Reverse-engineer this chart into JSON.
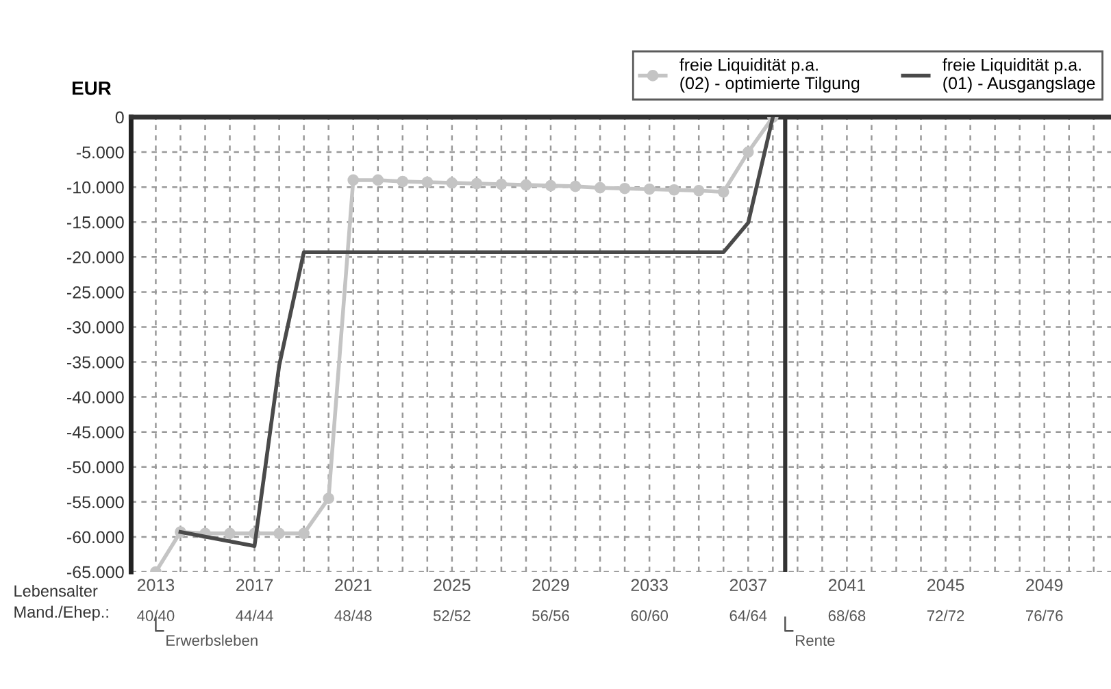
{
  "chart_data": {
    "type": "line",
    "ylabel": "EUR",
    "series": [
      {
        "name": "freie Liquidität p.a.\n(02) - optimierte Tilgung",
        "color": "#c4c4c4",
        "marker": "circle",
        "x": [
          2013,
          2014,
          2015,
          2016,
          2017,
          2018,
          2019,
          2020,
          2021,
          2022,
          2023,
          2024,
          2025,
          2026,
          2027,
          2028,
          2029,
          2030,
          2031,
          2032,
          2033,
          2034,
          2035,
          2036,
          2037,
          2038
        ],
        "values": [
          -65000,
          -59300,
          -59500,
          -59500,
          -59500,
          -59500,
          -59500,
          -54500,
          -9000,
          -9000,
          -9200,
          -9300,
          -9400,
          -9500,
          -9600,
          -9700,
          -9800,
          -9900,
          -10100,
          -10200,
          -10300,
          -10400,
          -10500,
          -10700,
          -5000,
          0
        ]
      },
      {
        "name": "freie Liquidität p.a.\n(01) - Ausgangslage",
        "color": "#4a4a4a",
        "marker": "none",
        "x": [
          2014,
          2017,
          2018,
          2019,
          2036,
          2037,
          2038
        ],
        "values": [
          -59300,
          -61300,
          -35500,
          -19300,
          -19300,
          -15100,
          0
        ]
      }
    ],
    "xlim": [
      2012,
      2051.7
    ],
    "xticks": [
      2013,
      {
        "value": 2014,
        "label": null
      },
      {
        "value": 2015,
        "label": null
      },
      {
        "value": 2016,
        "label": null
      },
      2017,
      {
        "value": 2018,
        "label": null
      },
      {
        "value": 2019,
        "label": null
      },
      {
        "value": 2020,
        "label": null
      },
      2021,
      {
        "value": 2022,
        "label": null
      },
      {
        "value": 2023,
        "label": null
      },
      {
        "value": 2024,
        "label": null
      },
      2025,
      {
        "value": 2026,
        "label": null
      },
      {
        "value": 2027,
        "label": null
      },
      {
        "value": 2028,
        "label": null
      },
      2029,
      {
        "value": 2030,
        "label": null
      },
      {
        "value": 2031,
        "label": null
      },
      {
        "value": 2032,
        "label": null
      },
      2033,
      {
        "value": 2034,
        "label": null
      },
      {
        "value": 2035,
        "label": null
      },
      {
        "value": 2036,
        "label": null
      },
      2037,
      {
        "value": 2038,
        "label": null
      },
      {
        "value": 2039,
        "label": null
      },
      {
        "value": 2040,
        "label": null
      },
      2041,
      {
        "value": 2042,
        "label": null
      },
      {
        "value": 2043,
        "label": null
      },
      {
        "value": 2044,
        "label": null
      },
      2045,
      {
        "value": 2046,
        "label": null
      },
      {
        "value": 2047,
        "label": null
      },
      {
        "value": 2048,
        "label": null
      },
      2049,
      {
        "value": 2050,
        "label": null
      },
      {
        "value": 2051,
        "label": null
      }
    ],
    "ylim": [
      -65000,
      0
    ],
    "yticks": [
      {
        "value": 0,
        "label": "0"
      },
      {
        "value": -5000,
        "label": "-5.000"
      },
      {
        "value": -10000,
        "label": "-10.000"
      },
      {
        "value": -15000,
        "label": "-15.000"
      },
      {
        "value": -20000,
        "label": "-20.000"
      },
      {
        "value": -25000,
        "label": "-25.000"
      },
      {
        "value": -30000,
        "label": "-30.000"
      },
      {
        "value": -35000,
        "label": "-35.000"
      },
      {
        "value": -40000,
        "label": "-40.000"
      },
      {
        "value": -45000,
        "label": "-45.000"
      },
      {
        "value": -50000,
        "label": "-50.000"
      },
      {
        "value": -55000,
        "label": "-55.000"
      },
      {
        "value": -60000,
        "label": "-60.000"
      },
      {
        "value": -65000,
        "label": "-65.000"
      }
    ],
    "ref_lines": [
      {
        "axis": "x",
        "value": 2038.5,
        "color": "#333333"
      }
    ],
    "annotations": [
      "Lebensalter\nMand./Ehep.:",
      "Erwerbsleben",
      "Rente",
      "40/40",
      "44/44",
      "48/48",
      "52/52",
      "56/56",
      "60/60",
      "64/64",
      "68/68",
      "72/72",
      "76/76"
    ],
    "grid": true,
    "line_style": "solid",
    "legend": "top right"
  }
}
